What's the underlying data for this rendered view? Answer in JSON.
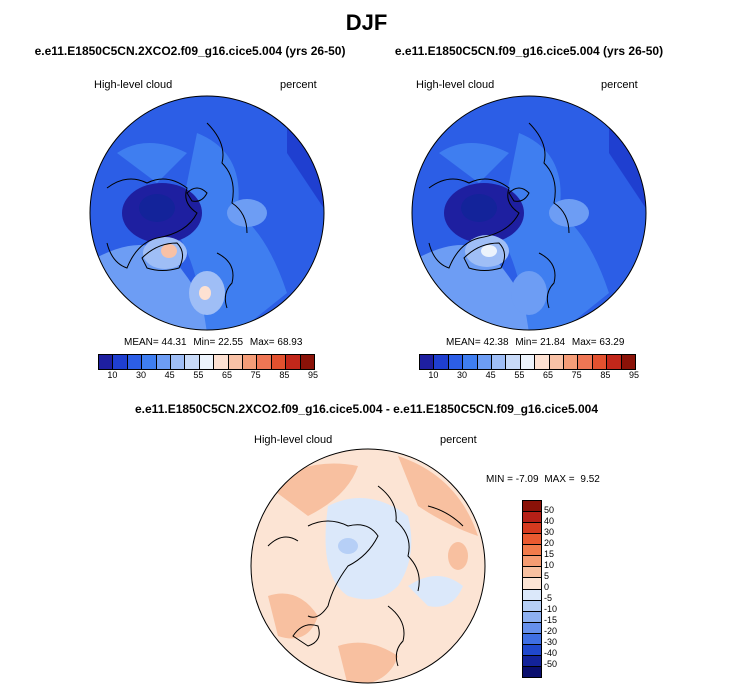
{
  "page": {
    "title": "DJF"
  },
  "panels": [
    {
      "case": "e.e11.E1850C5CN.2XCO2.f09_g16.cice5.004 (yrs 26-50)",
      "variable": "High-level cloud",
      "units": "percent",
      "stats": {
        "mean_label": "MEAN=",
        "mean": "44.31",
        "min_label": "Min=",
        "min": "22.55",
        "max_label": "Max=",
        "max": "68.93"
      }
    },
    {
      "case": "e.e11.E1850C5CN.f09_g16.cice5.004 (yrs 26-50)",
      "variable": "High-level cloud",
      "units": "percent",
      "stats": {
        "mean_label": "MEAN=",
        "mean": "42.38",
        "min_label": "Min=",
        "min": "21.84",
        "max_label": "Max=",
        "max": "63.29"
      }
    }
  ],
  "diff_panel": {
    "case": "e.e11.E1850C5CN.2XCO2.f09_g16.cice5.004 - e.e11.E1850C5CN.f09_g16.cice5.004",
    "variable": "High-level cloud",
    "units": "percent",
    "stats": {
      "min_label": "MIN =",
      "min": "-7.09",
      "max_label": "MAX =",
      "max": "9.52"
    }
  },
  "colorbar_abs": {
    "ticks": [
      "10",
      "30",
      "45",
      "55",
      "65",
      "75",
      "85",
      "95"
    ],
    "colors": [
      "#1e1fa0",
      "#1f3fd0",
      "#2c5ee6",
      "#3f7ef0",
      "#6d9df4",
      "#9fbef6",
      "#c8daf8",
      "#ecf3fc",
      "#fde1d2",
      "#f8c1a6",
      "#f59d78",
      "#ef7654",
      "#e2512f",
      "#c1271a",
      "#8a1208"
    ]
  },
  "colorbar_diff": {
    "ticks": [
      "50",
      "40",
      "30",
      "20",
      "15",
      "10",
      "5",
      "0",
      "-5",
      "-10",
      "-15",
      "-20",
      "-30",
      "-40",
      "-50"
    ],
    "colors": [
      "#8a1208",
      "#b52017",
      "#d63a1f",
      "#ea5a30",
      "#f17b4b",
      "#f59c72",
      "#f8c0a0",
      "#fce4d4",
      "#dbe8fa",
      "#b6cff6",
      "#8db0f1",
      "#6690ec",
      "#3f6fe3",
      "#2048cc",
      "#13239a",
      "#0a0f6e"
    ]
  }
}
